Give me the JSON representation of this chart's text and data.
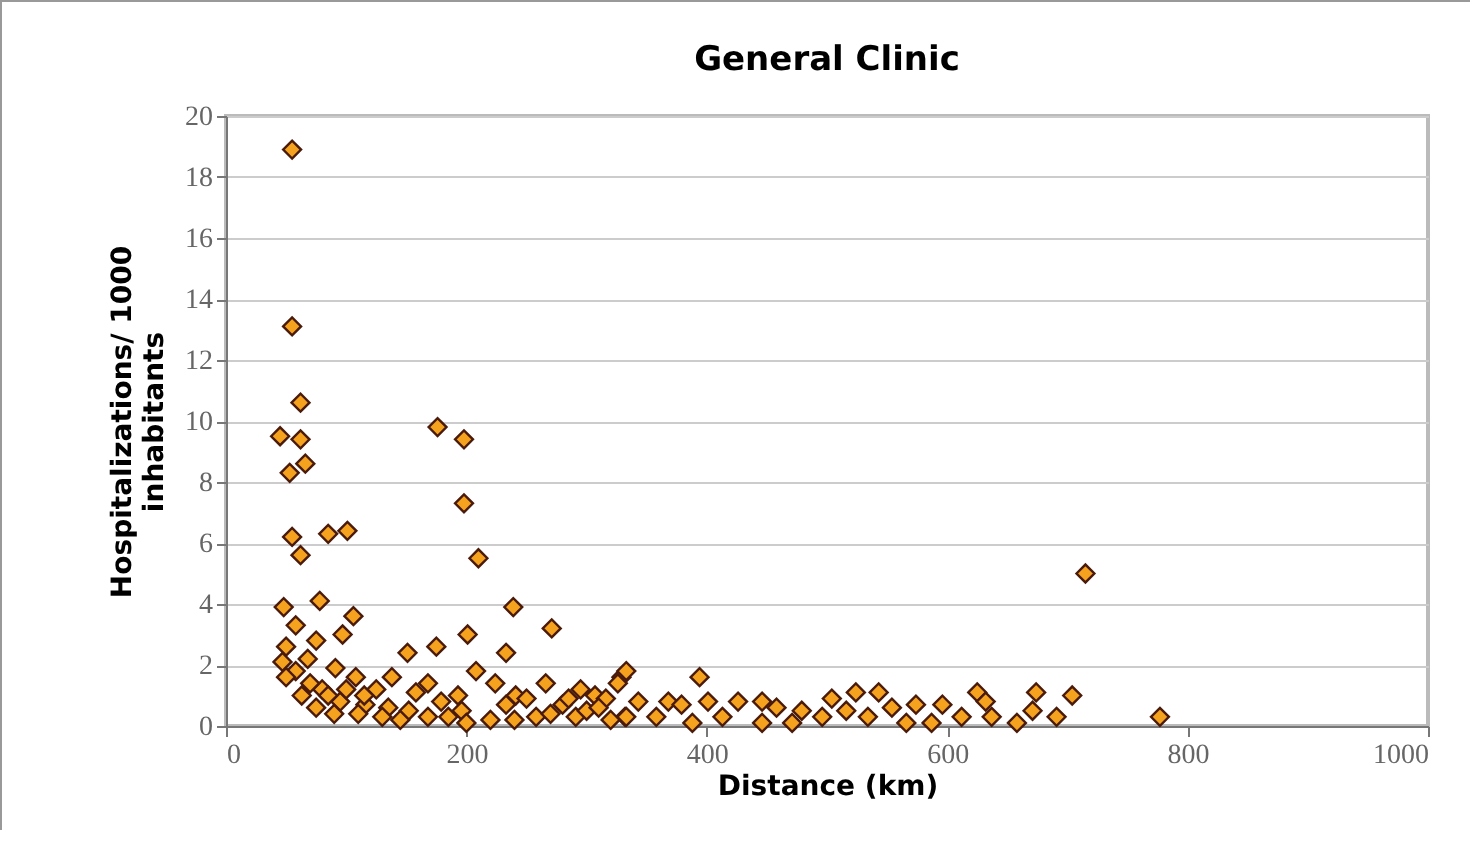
{
  "chart_data": {
    "type": "scatter",
    "title": "General Clinic",
    "xlabel": "Distance (km)",
    "ylabel": "Hospitalizations/ 1000\ninhabitants",
    "xlim": [
      0,
      1000
    ],
    "xticks": [
      0,
      200,
      400,
      600,
      800,
      1000
    ],
    "ylim": [
      0,
      20
    ],
    "yticks": [
      0,
      2,
      4,
      6,
      8,
      10,
      12,
      14,
      16,
      18,
      20
    ],
    "grid": "y",
    "marker": "diamond",
    "series": [
      {
        "color": "#f5a21e",
        "x": [
          55,
          55,
          62,
          45,
          62,
          66,
          53,
          55,
          62,
          85,
          101,
          176,
          198,
          198,
          210,
          239,
          271,
          48,
          78,
          106,
          58,
          50,
          75,
          97,
          47,
          58,
          91,
          63,
          175,
          201,
          151,
          233,
          108,
          125,
          138,
          158,
          168,
          179,
          193,
          208,
          224,
          241,
          266,
          280,
          307,
          329,
          116,
          135,
          152,
          168,
          196,
          233,
          258,
          291,
          332,
          80,
          50,
          68,
          715,
          333,
          326,
          394,
          368,
          401,
          426,
          446,
          333,
          358,
          388,
          413,
          446,
          471,
          496,
          504,
          524,
          543,
          516,
          534,
          566,
          587,
          612,
          625,
          637,
          658,
          674,
          671,
          691,
          704,
          458,
          479,
          554,
          574,
          596,
          316,
          343,
          379,
          632,
          777,
          285,
          300,
          295,
          250,
          270,
          310,
          320,
          240,
          220,
          200,
          185,
          145,
          130,
          110,
          95,
          90,
          75,
          70,
          85,
          115,
          100
        ],
        "values": [
          18.9,
          13.1,
          10.6,
          9.5,
          9.4,
          8.6,
          8.3,
          6.2,
          5.6,
          6.3,
          6.4,
          9.8,
          9.4,
          7.3,
          5.5,
          3.9,
          3.2,
          3.9,
          4.1,
          3.6,
          3.3,
          2.6,
          2.8,
          3.0,
          2.1,
          1.8,
          1.9,
          1.0,
          2.6,
          3.0,
          2.4,
          2.4,
          1.6,
          1.2,
          1.6,
          1.1,
          1.4,
          0.8,
          1.0,
          1.8,
          1.4,
          1.0,
          1.4,
          0.7,
          1.0,
          1.6,
          0.7,
          0.6,
          0.5,
          0.3,
          0.5,
          0.7,
          0.3,
          0.3,
          0.3,
          1.2,
          1.6,
          2.2,
          5.0,
          1.8,
          1.4,
          1.6,
          0.8,
          0.8,
          0.8,
          0.8,
          0.3,
          0.3,
          0.1,
          0.3,
          0.1,
          0.1,
          0.3,
          0.9,
          1.1,
          1.1,
          0.5,
          0.3,
          0.1,
          0.1,
          0.3,
          1.1,
          0.3,
          0.1,
          1.1,
          0.5,
          0.3,
          1.0,
          0.6,
          0.5,
          0.6,
          0.7,
          0.7,
          0.9,
          0.8,
          0.7,
          0.8,
          0.3,
          0.9,
          0.5,
          1.2,
          0.9,
          0.4,
          0.6,
          0.2,
          0.2,
          0.2,
          0.1,
          0.3,
          0.2,
          0.3,
          0.4,
          0.8,
          0.4,
          0.6,
          1.4,
          1.0,
          1.0,
          1.2
        ]
      }
    ]
  }
}
